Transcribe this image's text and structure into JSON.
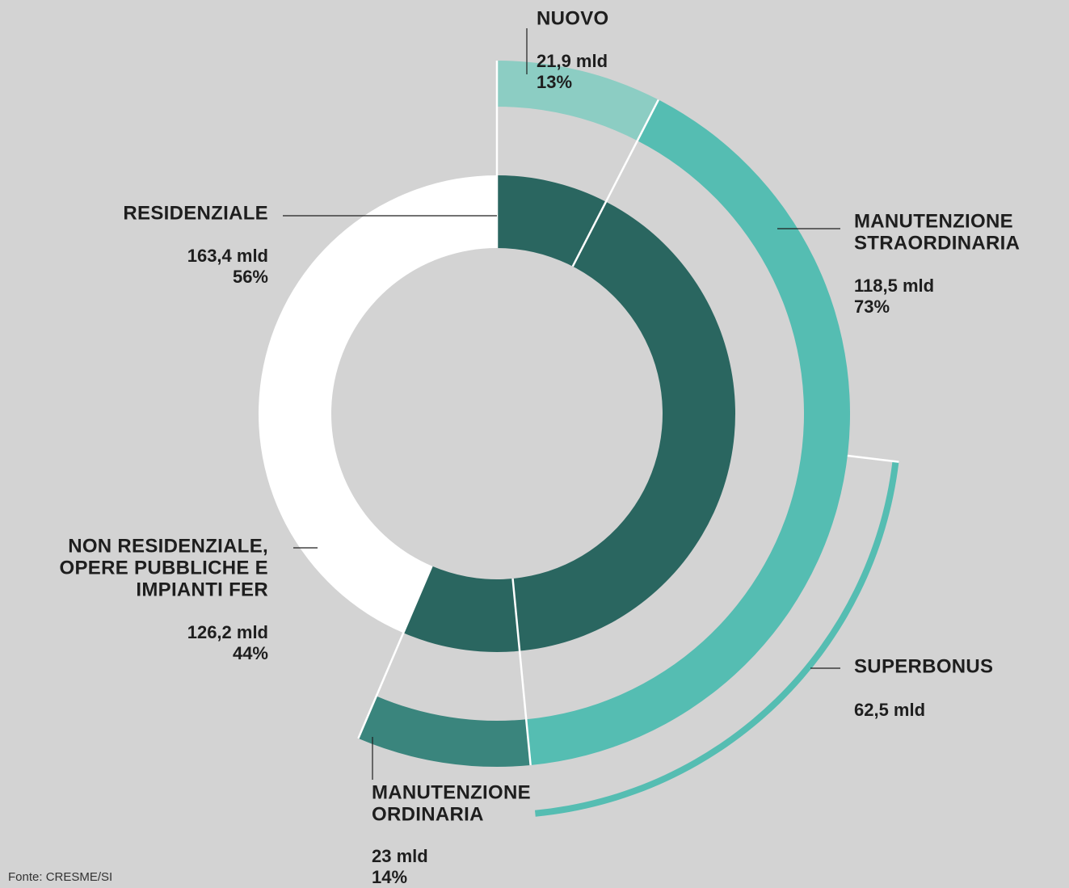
{
  "chart_data": {
    "type": "sunburst",
    "source": "Fonte: CRESME/SI",
    "rings": [
      {
        "labels": [
          [
            "RESIDENZIALE"
          ],
          [
            "NON RESIDENZIALE,",
            "OPERE PUBBLICHE E",
            "IMPIANTI FER"
          ]
        ],
        "values": [
          163.4,
          126.2
        ],
        "value_labels": [
          "163,4 mld",
          "126,2 mld"
        ],
        "percents": [
          56,
          44
        ],
        "percent_labels": [
          "56%",
          "44%"
        ],
        "colors": [
          "#2a6660",
          "#ffffff"
        ]
      },
      {
        "parent": 0,
        "labels": [
          [
            "NUOVO"
          ],
          [
            "MANUTENZIONE",
            "STRAORDINARIA"
          ],
          [
            "MANUTENZIONE",
            "ORDINARIA"
          ]
        ],
        "values": [
          21.9,
          118.5,
          23
        ],
        "value_labels": [
          "21,9 mld",
          "118,5 mld",
          "23 mld"
        ],
        "percents": [
          13,
          73,
          14
        ],
        "percent_labels": [
          "13%",
          "73%",
          "14%"
        ],
        "colors": [
          "#8ccdc3",
          "#55bdb2",
          "#3a857d"
        ]
      },
      {
        "parent": 1,
        "labels": [
          [
            "SUPERBONUS"
          ]
        ],
        "values": [
          62.5
        ],
        "value_labels": [
          "62,5 mld"
        ],
        "colors": [
          "#55bdb2"
        ]
      }
    ]
  }
}
